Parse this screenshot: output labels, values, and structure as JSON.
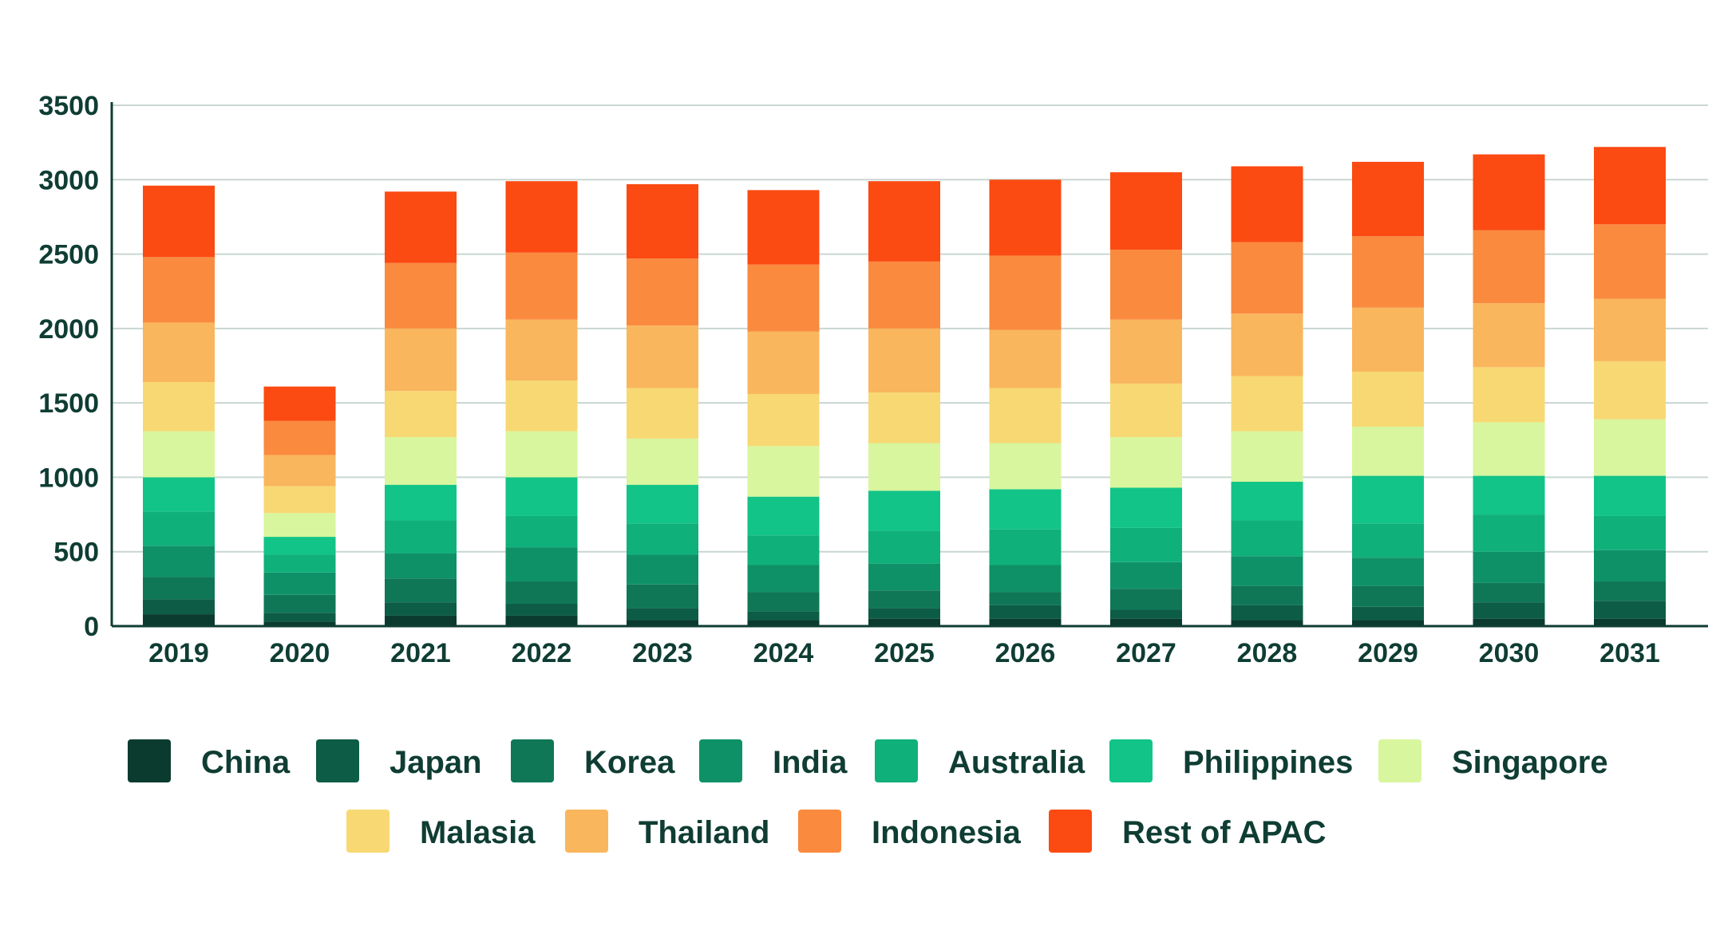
{
  "chart_data": {
    "type": "bar",
    "stacked": true,
    "title": "",
    "xlabel": "",
    "ylabel": "",
    "ylim": [
      0,
      3500
    ],
    "yticks": [
      0,
      500,
      1000,
      1500,
      2000,
      2500,
      3000,
      3500
    ],
    "grid": true,
    "legend_position": "bottom",
    "categories": [
      "2019",
      "2020",
      "2021",
      "2022",
      "2023",
      "2024",
      "2025",
      "2026",
      "2027",
      "2028",
      "2029",
      "2030",
      "2031"
    ],
    "series": [
      {
        "name": "China",
        "color": "#0b3b2f",
        "values": [
          80,
          30,
          70,
          70,
          40,
          40,
          50,
          50,
          50,
          40,
          40,
          50,
          50
        ]
      },
      {
        "name": "Japan",
        "color": "#0d5c45",
        "values": [
          100,
          60,
          90,
          80,
          80,
          60,
          70,
          90,
          60,
          100,
          90,
          110,
          120
        ]
      },
      {
        "name": "Korea",
        "color": "#0f7756",
        "values": [
          150,
          120,
          160,
          150,
          160,
          130,
          120,
          90,
          140,
          130,
          140,
          130,
          130
        ]
      },
      {
        "name": "India",
        "color": "#0f9168",
        "values": [
          210,
          150,
          170,
          230,
          200,
          180,
          180,
          180,
          180,
          200,
          190,
          210,
          210
        ]
      },
      {
        "name": "Australia",
        "color": "#10b07a",
        "values": [
          230,
          120,
          220,
          210,
          210,
          200,
          220,
          240,
          230,
          240,
          230,
          250,
          230
        ]
      },
      {
        "name": "Philippines",
        "color": "#12c487",
        "values": [
          230,
          120,
          240,
          260,
          260,
          260,
          270,
          270,
          270,
          260,
          320,
          260,
          270
        ]
      },
      {
        "name": "Singapore",
        "color": "#d8f69d",
        "values": [
          310,
          160,
          320,
          310,
          310,
          340,
          320,
          310,
          340,
          340,
          330,
          360,
          380
        ]
      },
      {
        "name": "Malasia",
        "color": "#f8d873",
        "values": [
          330,
          180,
          310,
          340,
          340,
          350,
          340,
          370,
          360,
          370,
          370,
          370,
          390
        ]
      },
      {
        "name": "Thailand",
        "color": "#f9b65c",
        "values": [
          400,
          210,
          420,
          410,
          420,
          420,
          430,
          390,
          430,
          420,
          430,
          430,
          420
        ]
      },
      {
        "name": "Indonesia",
        "color": "#fa8a3e",
        "values": [
          440,
          230,
          440,
          450,
          450,
          450,
          450,
          500,
          470,
          480,
          480,
          490,
          500
        ]
      },
      {
        "name": "Rest of APAC",
        "color": "#fb4a12",
        "values": [
          480,
          230,
          480,
          480,
          500,
          500,
          540,
          510,
          520,
          510,
          500,
          510,
          520
        ]
      }
    ]
  }
}
